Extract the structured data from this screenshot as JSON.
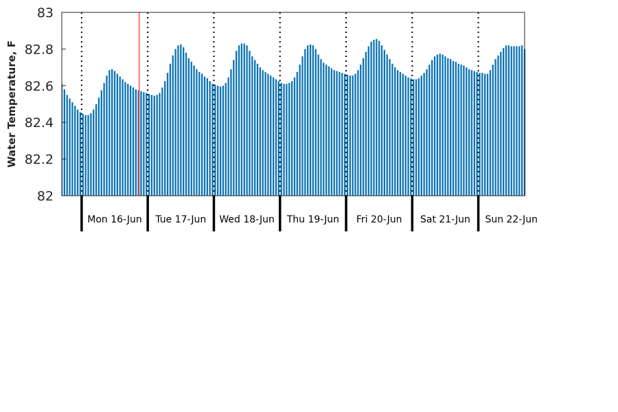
{
  "chart_data": {
    "type": "bar",
    "ylabel": "Water Temperature, F",
    "xlabel": "",
    "title": "",
    "ylim": [
      82,
      83
    ],
    "yticks": [
      82,
      82.2,
      82.4,
      82.6,
      82.8,
      83
    ],
    "ytick_labels": [
      "82",
      "82.2",
      "82.4",
      "82.6",
      "82.8",
      "83"
    ],
    "grid": false,
    "bar_color": "#0b72b5",
    "marker_color": "#ff4d4d",
    "xrange_days": [
      15.7,
      22.7
    ],
    "day_ticks": [
      {
        "day": 16,
        "label": "Mon 16-Jun"
      },
      {
        "day": 17,
        "label": "Tue 17-Jun"
      },
      {
        "day": 18,
        "label": "Wed 18-Jun"
      },
      {
        "day": 19,
        "label": "Thu 19-Jun"
      },
      {
        "day": 20,
        "label": "Fri 20-Jun"
      },
      {
        "day": 21,
        "label": "Sat 21-Jun"
      },
      {
        "day": 22,
        "label": "Sun 22-Jun"
      }
    ],
    "marker_day": 16.87,
    "x": [
      15.7,
      15.74,
      15.78,
      15.82,
      15.86,
      15.9,
      15.94,
      15.98,
      16.02,
      16.06,
      16.1,
      16.14,
      16.18,
      16.22,
      16.26,
      16.3,
      16.34,
      16.38,
      16.42,
      16.46,
      16.5,
      16.54,
      16.58,
      16.62,
      16.66,
      16.7,
      16.74,
      16.78,
      16.82,
      16.86,
      16.9,
      16.94,
      16.98,
      17.02,
      17.06,
      17.1,
      17.14,
      17.18,
      17.22,
      17.26,
      17.3,
      17.34,
      17.38,
      17.42,
      17.46,
      17.5,
      17.54,
      17.58,
      17.62,
      17.66,
      17.7,
      17.74,
      17.78,
      17.82,
      17.86,
      17.9,
      17.94,
      17.98,
      18.02,
      18.06,
      18.1,
      18.14,
      18.18,
      18.22,
      18.26,
      18.3,
      18.34,
      18.38,
      18.42,
      18.46,
      18.5,
      18.54,
      18.58,
      18.62,
      18.66,
      18.7,
      18.74,
      18.78,
      18.82,
      18.86,
      18.9,
      18.94,
      18.98,
      19.02,
      19.06,
      19.1,
      19.14,
      19.18,
      19.22,
      19.26,
      19.3,
      19.34,
      19.38,
      19.42,
      19.46,
      19.5,
      19.54,
      19.58,
      19.62,
      19.66,
      19.7,
      19.74,
      19.78,
      19.82,
      19.86,
      19.9,
      19.94,
      19.98,
      20.02,
      20.06,
      20.1,
      20.14,
      20.18,
      20.22,
      20.26,
      20.3,
      20.34,
      20.38,
      20.42,
      20.46,
      20.5,
      20.54,
      20.58,
      20.62,
      20.66,
      20.7,
      20.74,
      20.78,
      20.82,
      20.86,
      20.9,
      20.94,
      20.98,
      21.02,
      21.06,
      21.1,
      21.14,
      21.18,
      21.22,
      21.26,
      21.3,
      21.34,
      21.38,
      21.42,
      21.46,
      21.5,
      21.54,
      21.58,
      21.62,
      21.66,
      21.7,
      21.74,
      21.78,
      21.82,
      21.86,
      21.9,
      21.94,
      21.98,
      22.02,
      22.06,
      22.1,
      22.14,
      22.18,
      22.22,
      22.26,
      22.3,
      22.34,
      22.38,
      22.42,
      22.46,
      22.5,
      22.54,
      22.58,
      22.62,
      22.66,
      22.7
    ],
    "values": [
      82.61,
      82.58,
      82.55,
      82.53,
      82.51,
      82.49,
      82.47,
      82.455,
      82.445,
      82.44,
      82.44,
      82.45,
      82.47,
      82.5,
      82.535,
      82.575,
      82.615,
      82.655,
      82.685,
      82.69,
      82.68,
      82.665,
      82.65,
      82.635,
      82.62,
      82.61,
      82.6,
      82.59,
      82.58,
      82.575,
      82.57,
      82.565,
      82.56,
      82.555,
      82.55,
      82.545,
      82.55,
      82.56,
      82.59,
      82.625,
      82.67,
      82.72,
      82.765,
      82.8,
      82.82,
      82.825,
      82.81,
      82.78,
      82.75,
      82.73,
      82.71,
      82.69,
      82.675,
      82.665,
      82.65,
      82.64,
      82.625,
      82.61,
      82.605,
      82.6,
      82.595,
      82.6,
      82.615,
      82.645,
      82.69,
      82.74,
      82.79,
      82.82,
      82.83,
      82.83,
      82.82,
      82.79,
      82.76,
      82.74,
      82.72,
      82.7,
      82.685,
      82.675,
      82.665,
      82.655,
      82.645,
      82.635,
      82.625,
      82.615,
      82.61,
      82.61,
      82.615,
      82.625,
      82.645,
      82.675,
      82.715,
      82.76,
      82.8,
      82.82,
      82.825,
      82.82,
      82.8,
      82.77,
      82.745,
      82.725,
      82.715,
      82.705,
      82.695,
      82.685,
      82.68,
      82.675,
      82.67,
      82.665,
      82.66,
      82.655,
      82.655,
      82.665,
      82.685,
      82.715,
      82.75,
      82.785,
      82.815,
      82.84,
      82.85,
      82.855,
      82.845,
      82.82,
      82.795,
      82.77,
      82.745,
      82.72,
      82.7,
      82.685,
      82.675,
      82.665,
      82.655,
      82.645,
      82.64,
      82.635,
      82.635,
      82.64,
      82.655,
      82.67,
      82.69,
      82.715,
      82.74,
      82.76,
      82.77,
      82.775,
      82.77,
      82.76,
      82.75,
      82.745,
      82.735,
      82.73,
      82.72,
      82.715,
      82.71,
      82.7,
      82.69,
      82.685,
      82.68,
      82.675,
      82.67,
      82.67,
      82.665,
      82.665,
      82.685,
      82.715,
      82.745,
      82.765,
      82.785,
      82.805,
      82.82,
      82.82,
      82.815,
      82.815,
      82.815,
      82.815,
      82.82,
      82.8
    ]
  }
}
